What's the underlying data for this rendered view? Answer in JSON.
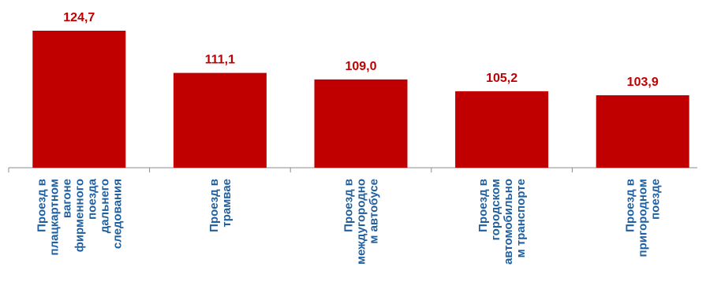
{
  "chart_data": {
    "type": "bar",
    "categories": [
      "Проезд в плацкартном вагоне фирменного поезда дальнего следования",
      "Проезд в трамвае",
      "Проезд в междугородном автобусе",
      "Проезд в городском автомобильном транспорте",
      "Проезд в пригородном поезде"
    ],
    "category_lines": [
      [
        "Проезд в",
        "плацкартном",
        "вагоне",
        "фирменного",
        "поезда",
        "дальнего",
        "следования"
      ],
      [
        "Проезд в",
        "трамвае"
      ],
      [
        "Проезд в",
        "междугородно",
        "м автобусе"
      ],
      [
        "Проезд в",
        "городском",
        "автомобильно",
        "м  транспорте"
      ],
      [
        "Проезд в",
        "пригородном",
        "поезде"
      ]
    ],
    "values": [
      124.7,
      111.1,
      109.0,
      105.2,
      103.9
    ],
    "value_labels": [
      "124,7",
      "111,1",
      "109,0",
      "105,2",
      "103,9"
    ],
    "title": "",
    "xlabel": "",
    "ylabel": "",
    "grid": false,
    "legend": "none",
    "colors": {
      "bar": "#C00000",
      "value_label": "#C00000",
      "category_label": "#1F5F9F",
      "axis": "#8C8C8C"
    }
  }
}
